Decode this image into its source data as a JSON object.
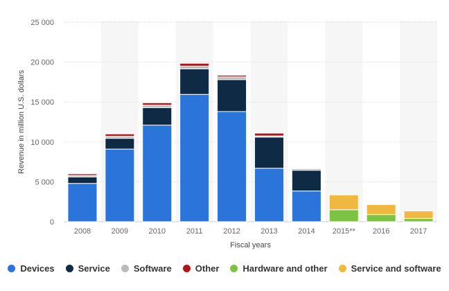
{
  "chart_data": {
    "type": "bar",
    "stacked": true,
    "categories": [
      "2008",
      "2009",
      "2010",
      "2011",
      "2012",
      "2013",
      "2014",
      "2015**",
      "2016",
      "2017"
    ],
    "xlabel": "Fiscal years",
    "ylabel": "Revenue in million U.S. dollars",
    "ylim": [
      0,
      25000
    ],
    "yticks": [
      0,
      5000,
      10000,
      15000,
      20000,
      25000
    ],
    "ytick_labels": [
      "0",
      "5 000",
      "10 000",
      "15 000",
      "20 000",
      "25 000"
    ],
    "grid": true,
    "legend_position": "bottom",
    "series": [
      {
        "name": "Devices",
        "color": "#2b74d9",
        "values": [
          4800,
          9100,
          12100,
          15950,
          13800,
          6700,
          3850,
          0,
          0,
          0
        ]
      },
      {
        "name": "Service",
        "color": "#0f2a44",
        "values": [
          800,
          1350,
          2200,
          3200,
          4000,
          3900,
          2600,
          0,
          0,
          0
        ]
      },
      {
        "name": "Software",
        "color": "#bbbbbb",
        "values": [
          200,
          250,
          300,
          350,
          350,
          150,
          200,
          0,
          0,
          0
        ]
      },
      {
        "name": "Other",
        "color": "#b0151a",
        "values": [
          200,
          300,
          300,
          350,
          200,
          350,
          0,
          0,
          0,
          0
        ]
      },
      {
        "name": "Hardware and other",
        "color": "#7dc242",
        "values": [
          0,
          0,
          0,
          0,
          0,
          0,
          0,
          1500,
          900,
          400
        ]
      },
      {
        "name": "Service and software",
        "color": "#f0b840",
        "values": [
          0,
          0,
          0,
          0,
          0,
          0,
          0,
          1850,
          1250,
          950
        ]
      }
    ]
  }
}
